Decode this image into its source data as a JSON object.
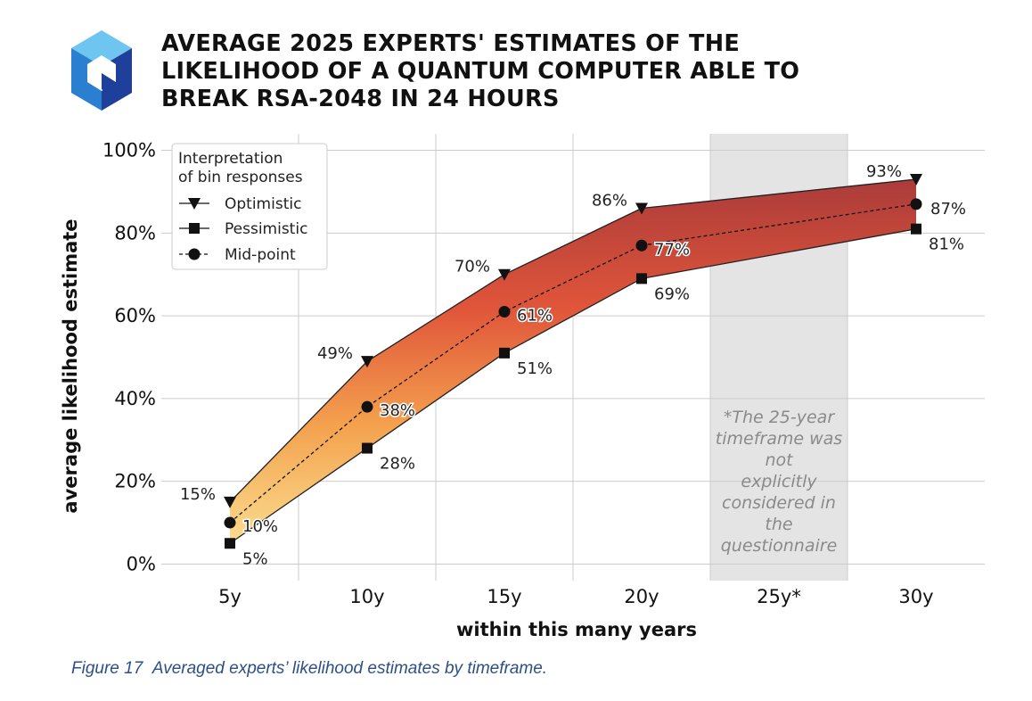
{
  "header": {
    "title_lines": [
      "AVERAGE 2025 EXPERTS' ESTIMATES OF THE",
      "LIKELIHOOD OF A QUANTUM COMPUTER ABLE TO",
      "BREAK RSA-2048 IN 24 HOURS"
    ],
    "logo_icon": "quantum-cube-logo-icon"
  },
  "caption": {
    "figure_label": "Figure 17",
    "text": "Averaged experts’ likelihood estimates by timeframe."
  },
  "colors": {
    "band_top": "#a83a3a",
    "band_mid": "#e0553a",
    "band_low": "#f4a24e",
    "band_bottom": "#fbe79a",
    "shade": "#e4e4e4",
    "note_text": "#8a8a8a"
  },
  "chart_data": {
    "type": "line",
    "title": "AVERAGE 2025 EXPERTS' ESTIMATES OF THE LIKELIHOOD OF A QUANTUM COMPUTER ABLE TO BREAK RSA-2048 IN 24 HOURS",
    "xlabel": "within this many years",
    "ylabel": "average likelihood estimate",
    "categories": [
      "5y",
      "10y",
      "15y",
      "20y",
      "25y*",
      "30y"
    ],
    "y_ticks": [
      "0%",
      "20%",
      "40%",
      "60%",
      "80%",
      "100%"
    ],
    "y_tick_values": [
      0,
      20,
      40,
      60,
      80,
      100
    ],
    "ylim": [
      -4,
      104
    ],
    "grid": true,
    "legend": {
      "title_lines": [
        "Interpretation",
        "of bin responses"
      ],
      "placement": "top-left"
    },
    "series": [
      {
        "name": "Optimistic",
        "marker": "triangle-down",
        "line": "solid",
        "x": [
          "5y",
          "10y",
          "15y",
          "20y",
          "30y"
        ],
        "values": [
          15,
          49,
          70,
          86,
          93
        ],
        "labels": [
          "15%",
          "49%",
          "70%",
          "86%",
          "93%"
        ]
      },
      {
        "name": "Pessimistic",
        "marker": "square",
        "line": "solid",
        "x": [
          "5y",
          "10y",
          "15y",
          "20y",
          "30y"
        ],
        "values": [
          5,
          28,
          51,
          69,
          81
        ],
        "labels": [
          "5%",
          "28%",
          "51%",
          "69%",
          "81%"
        ]
      },
      {
        "name": "Mid-point",
        "marker": "circle",
        "line": "dashed",
        "x": [
          "5y",
          "10y",
          "15y",
          "20y",
          "30y"
        ],
        "values": [
          10,
          38,
          61,
          77,
          87
        ],
        "labels": [
          "10%",
          "38%",
          "61%",
          "77%",
          "87%"
        ]
      }
    ],
    "shaded_region": {
      "x": "25y*"
    },
    "annotation": {
      "lines": [
        "*The 25-year",
        "timeframe was",
        "not",
        "explicitly",
        "considered in",
        "the",
        "questionnaire"
      ]
    }
  }
}
